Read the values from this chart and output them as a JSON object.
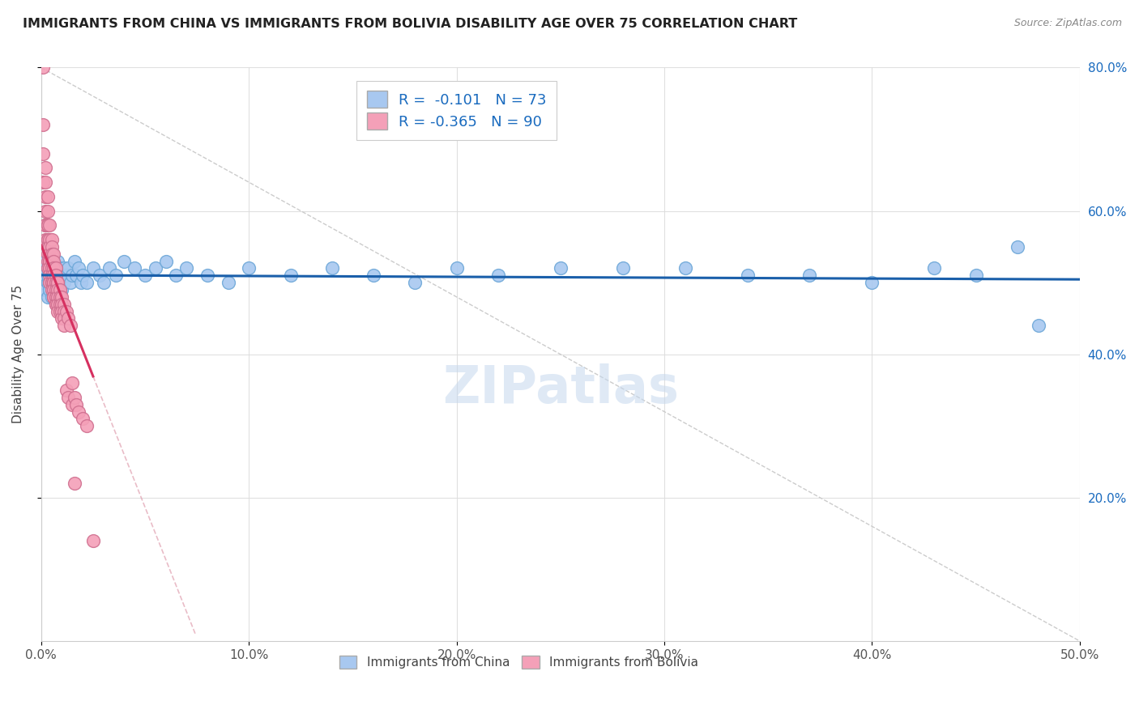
{
  "title": "IMMIGRANTS FROM CHINA VS IMMIGRANTS FROM BOLIVIA DISABILITY AGE OVER 75 CORRELATION CHART",
  "source": "Source: ZipAtlas.com",
  "ylabel": "Disability Age Over 75",
  "x_min": 0.0,
  "x_max": 0.5,
  "y_min": 0.0,
  "y_max": 0.8,
  "china_R": -0.101,
  "china_N": 73,
  "bolivia_R": -0.365,
  "bolivia_N": 90,
  "china_color": "#a8c8f0",
  "bolivia_color": "#f4a0b8",
  "china_line_color": "#1a5faa",
  "bolivia_line_color": "#d63060",
  "china_dot_edge": "#6ea8d8",
  "bolivia_dot_edge": "#d07090",
  "grid_color": "#dddddd",
  "watermark": "ZIPatlas",
  "legend_label_china": "Immigrants from China",
  "legend_label_bolivia": "Immigrants from Bolivia",
  "china_scatter_x": [
    0.001,
    0.001,
    0.002,
    0.002,
    0.002,
    0.003,
    0.003,
    0.003,
    0.003,
    0.004,
    0.004,
    0.004,
    0.005,
    0.005,
    0.005,
    0.005,
    0.006,
    0.006,
    0.006,
    0.006,
    0.007,
    0.007,
    0.007,
    0.008,
    0.008,
    0.008,
    0.009,
    0.009,
    0.01,
    0.01,
    0.011,
    0.011,
    0.012,
    0.013,
    0.014,
    0.015,
    0.016,
    0.017,
    0.018,
    0.019,
    0.02,
    0.022,
    0.025,
    0.028,
    0.03,
    0.033,
    0.036,
    0.04,
    0.045,
    0.05,
    0.055,
    0.06,
    0.065,
    0.07,
    0.08,
    0.09,
    0.1,
    0.12,
    0.14,
    0.16,
    0.18,
    0.2,
    0.22,
    0.25,
    0.28,
    0.31,
    0.34,
    0.37,
    0.4,
    0.43,
    0.45,
    0.47,
    0.48
  ],
  "china_scatter_y": [
    0.52,
    0.5,
    0.51,
    0.49,
    0.53,
    0.5,
    0.52,
    0.48,
    0.51,
    0.5,
    0.52,
    0.49,
    0.51,
    0.53,
    0.5,
    0.48,
    0.52,
    0.5,
    0.51,
    0.49,
    0.52,
    0.5,
    0.48,
    0.51,
    0.49,
    0.53,
    0.5,
    0.52,
    0.51,
    0.49,
    0.52,
    0.5,
    0.51,
    0.52,
    0.5,
    0.51,
    0.53,
    0.51,
    0.52,
    0.5,
    0.51,
    0.5,
    0.52,
    0.51,
    0.5,
    0.52,
    0.51,
    0.53,
    0.52,
    0.51,
    0.52,
    0.53,
    0.51,
    0.52,
    0.51,
    0.5,
    0.52,
    0.51,
    0.52,
    0.51,
    0.5,
    0.52,
    0.51,
    0.52,
    0.52,
    0.52,
    0.51,
    0.51,
    0.5,
    0.52,
    0.51,
    0.55,
    0.44
  ],
  "bolivia_scatter_x": [
    0.001,
    0.001,
    0.001,
    0.001,
    0.002,
    0.002,
    0.002,
    0.002,
    0.002,
    0.002,
    0.002,
    0.002,
    0.003,
    0.003,
    0.003,
    0.003,
    0.003,
    0.003,
    0.003,
    0.003,
    0.003,
    0.003,
    0.004,
    0.004,
    0.004,
    0.004,
    0.004,
    0.004,
    0.004,
    0.004,
    0.004,
    0.005,
    0.005,
    0.005,
    0.005,
    0.005,
    0.005,
    0.005,
    0.005,
    0.005,
    0.006,
    0.006,
    0.006,
    0.006,
    0.006,
    0.006,
    0.006,
    0.006,
    0.006,
    0.007,
    0.007,
    0.007,
    0.007,
    0.007,
    0.007,
    0.007,
    0.007,
    0.007,
    0.008,
    0.008,
    0.008,
    0.008,
    0.008,
    0.008,
    0.009,
    0.009,
    0.009,
    0.009,
    0.01,
    0.01,
    0.01,
    0.01,
    0.011,
    0.011,
    0.011,
    0.011,
    0.012,
    0.012,
    0.013,
    0.013,
    0.014,
    0.015,
    0.016,
    0.017,
    0.018,
    0.02,
    0.022,
    0.025,
    0.015,
    0.016
  ],
  "bolivia_scatter_y": [
    0.8,
    0.72,
    0.68,
    0.64,
    0.66,
    0.64,
    0.62,
    0.6,
    0.58,
    0.58,
    0.58,
    0.56,
    0.62,
    0.6,
    0.58,
    0.58,
    0.56,
    0.56,
    0.55,
    0.54,
    0.53,
    0.52,
    0.58,
    0.56,
    0.55,
    0.54,
    0.53,
    0.53,
    0.52,
    0.51,
    0.5,
    0.56,
    0.55,
    0.54,
    0.53,
    0.52,
    0.51,
    0.5,
    0.5,
    0.49,
    0.54,
    0.53,
    0.52,
    0.51,
    0.5,
    0.5,
    0.49,
    0.48,
    0.48,
    0.52,
    0.51,
    0.5,
    0.5,
    0.49,
    0.48,
    0.48,
    0.47,
    0.47,
    0.5,
    0.5,
    0.49,
    0.48,
    0.47,
    0.46,
    0.49,
    0.48,
    0.47,
    0.46,
    0.48,
    0.47,
    0.46,
    0.45,
    0.47,
    0.46,
    0.45,
    0.44,
    0.46,
    0.35,
    0.45,
    0.34,
    0.44,
    0.33,
    0.34,
    0.33,
    0.32,
    0.31,
    0.3,
    0.14,
    0.36,
    0.22
  ]
}
